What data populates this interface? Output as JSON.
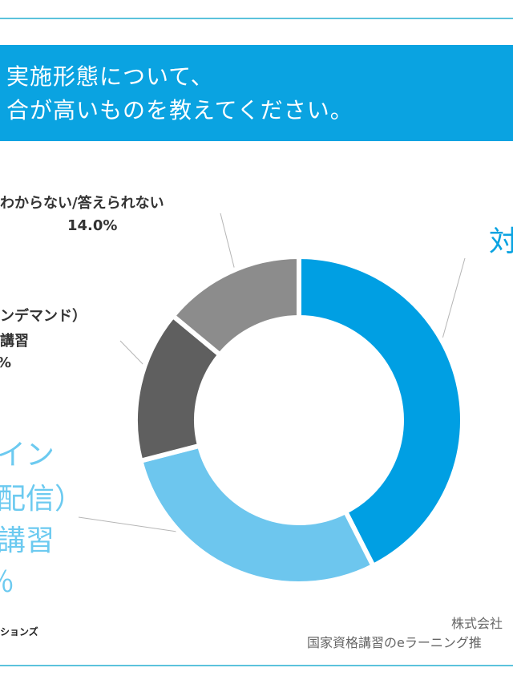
{
  "header": {
    "line1": "実施形態について、",
    "line2": "合が高いものを教えてください。"
  },
  "chart_data": {
    "type": "donut",
    "series": [
      {
        "label_lines": [
          "対"
        ],
        "value": 42.5,
        "color": "#009fe3"
      },
      {
        "label_lines": [
          "イン",
          "配信）",
          "講習",
          "％"
        ],
        "value": 28.5,
        "color": "#6dc6ee"
      },
      {
        "label_lines": [
          "ンデマンド）",
          "講習",
          "%"
        ],
        "value": 15.0,
        "color": "#5f5f5f"
      },
      {
        "label_lines": [
          "わからない/答えられない",
          "14.0%"
        ],
        "value": 14.0,
        "color": "#8c8c8c"
      }
    ]
  },
  "footer": {
    "credit": "ションズ",
    "source_line1": "株式会社",
    "source_line2": "国家資格講習のeラーニング推"
  }
}
